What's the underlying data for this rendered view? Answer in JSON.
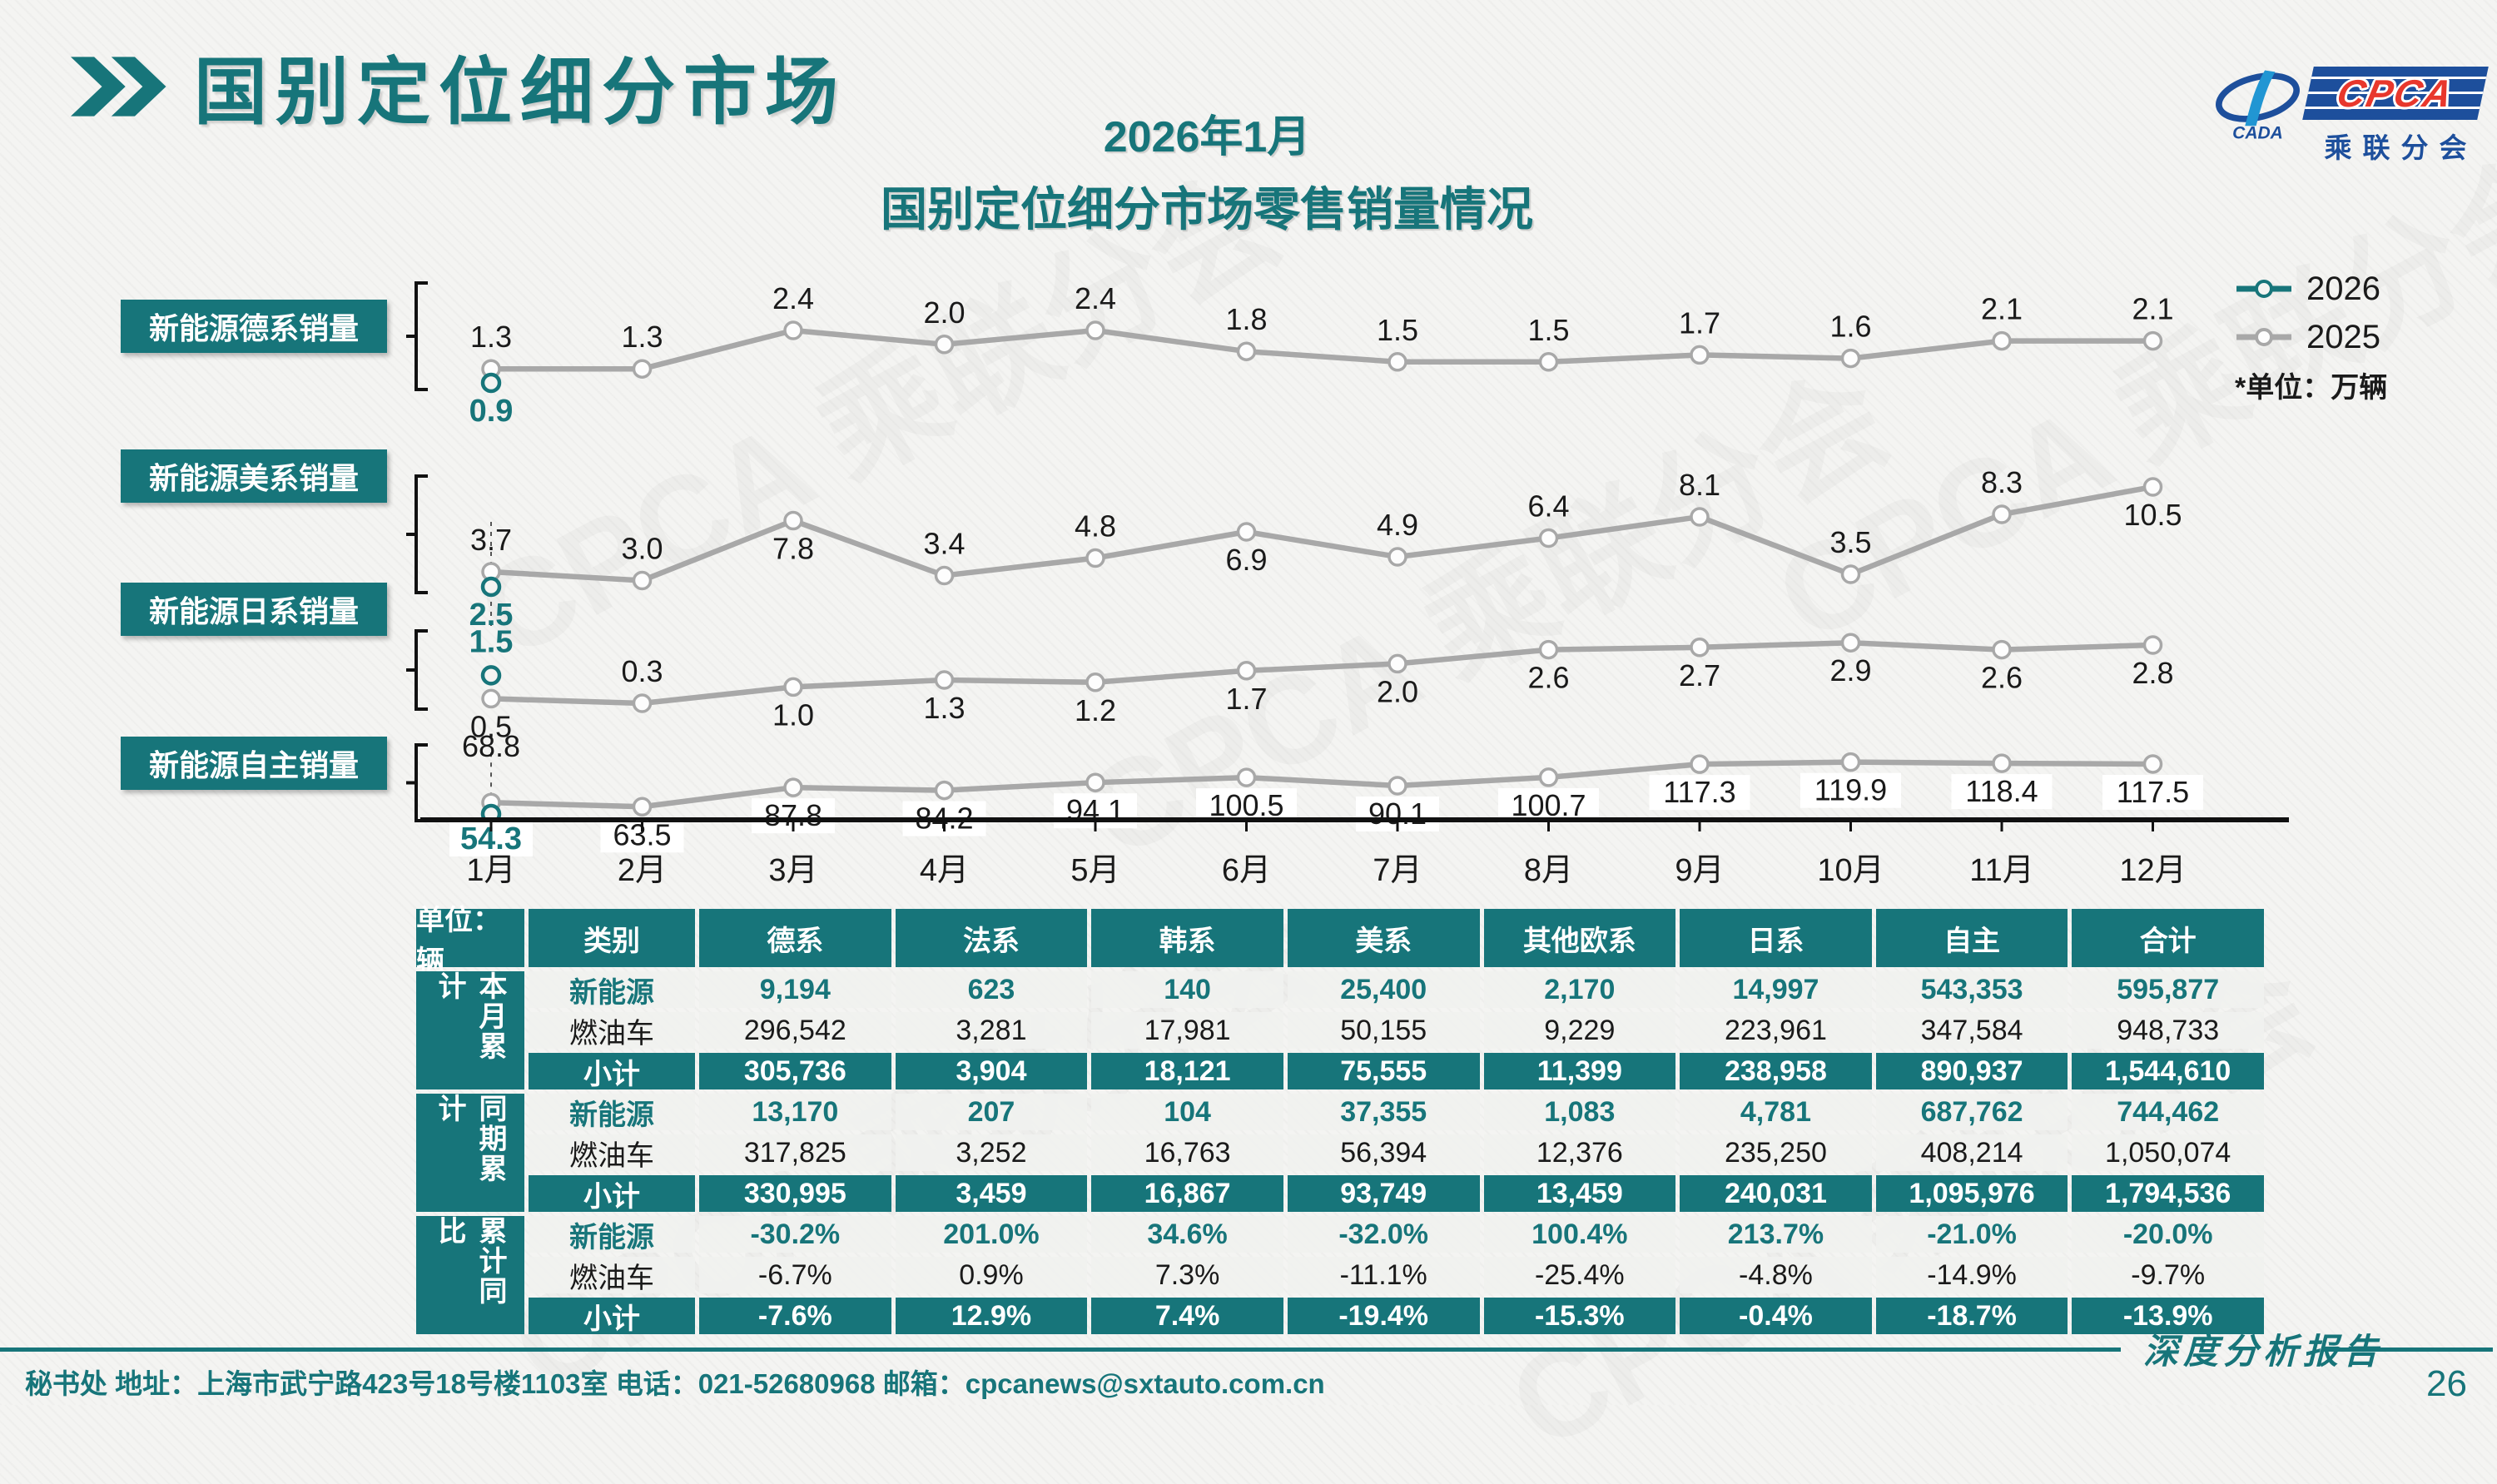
{
  "header": {
    "title": "国别定位细分市场",
    "subtitle_line1": "2026年1月",
    "subtitle_line2": "国别定位细分市场零售销量情况",
    "logo": {
      "cada_text": "CADA",
      "cpca_text": "CPCA",
      "org_text": "乘联分会"
    }
  },
  "legend": {
    "series_2026": "2026",
    "series_2025": "2025",
    "unit_note": "*单位：万辆"
  },
  "chart_data": {
    "type": "line",
    "x": [
      "1月",
      "2月",
      "3月",
      "4月",
      "5月",
      "6月",
      "7月",
      "8月",
      "9月",
      "10月",
      "11月",
      "12月"
    ],
    "unit": "万辆",
    "legend_position": "right",
    "series_rows": [
      {
        "name": "新能源德系销量",
        "y2025": [
          1.3,
          1.3,
          2.4,
          2.0,
          2.4,
          1.8,
          1.5,
          1.5,
          1.7,
          1.6,
          2.1,
          2.1
        ],
        "y2026": [
          0.9
        ],
        "labels2025_below": [
          false,
          false,
          false,
          false,
          false,
          false,
          false,
          false,
          false,
          false,
          false,
          false
        ],
        "label2026_below": true
      },
      {
        "name": "新能源美系销量",
        "y2025": [
          3.7,
          3.0,
          7.8,
          3.4,
          4.8,
          6.9,
          4.9,
          6.4,
          8.1,
          3.5,
          8.3,
          10.5
        ],
        "y2026": [
          2.5
        ],
        "labels2025_below": [
          false,
          false,
          true,
          false,
          false,
          true,
          false,
          false,
          false,
          false,
          false,
          true
        ],
        "label2026_below": true
      },
      {
        "name": "新能源日系销量",
        "y2025": [
          0.5,
          0.3,
          1.0,
          1.3,
          1.2,
          1.7,
          2.0,
          2.6,
          2.7,
          2.9,
          2.6,
          2.8
        ],
        "y2026": [
          1.5
        ],
        "labels2025_below": [
          true,
          false,
          true,
          true,
          true,
          true,
          true,
          true,
          true,
          true,
          true,
          true
        ],
        "label2026_below": false
      },
      {
        "name": "新能源自主销量",
        "y2025": [
          68.8,
          63.5,
          87.8,
          84.2,
          94.1,
          100.5,
          90.1,
          100.7,
          117.3,
          119.9,
          118.4,
          117.5
        ],
        "y2026": [
          54.3
        ],
        "labels2025_below": [
          false,
          true,
          true,
          true,
          true,
          true,
          true,
          true,
          true,
          true,
          true,
          true
        ],
        "label2026_below": true
      }
    ]
  },
  "table": {
    "unit_label": "单位：辆",
    "category_header": "类别",
    "columns": [
      "德系",
      "法系",
      "韩系",
      "美系",
      "其他欧系",
      "日系",
      "自主",
      "合计"
    ],
    "groups": [
      {
        "name": "本月累计",
        "rows": [
          {
            "category": "新能源",
            "values": [
              "9,194",
              "623",
              "140",
              "25,400",
              "2,170",
              "14,997",
              "543,353",
              "595,877"
            ]
          },
          {
            "category": "燃油车",
            "values": [
              "296,542",
              "3,281",
              "17,981",
              "50,155",
              "9,229",
              "223,961",
              "347,584",
              "948,733"
            ]
          },
          {
            "category": "小计",
            "values": [
              "305,736",
              "3,904",
              "18,121",
              "75,555",
              "11,399",
              "238,958",
              "890,937",
              "1,544,610"
            ]
          }
        ]
      },
      {
        "name": "同期累计",
        "rows": [
          {
            "category": "新能源",
            "values": [
              "13,170",
              "207",
              "104",
              "37,355",
              "1,083",
              "4,781",
              "687,762",
              "744,462"
            ]
          },
          {
            "category": "燃油车",
            "values": [
              "317,825",
              "3,252",
              "16,763",
              "56,394",
              "12,376",
              "235,250",
              "408,214",
              "1,050,074"
            ]
          },
          {
            "category": "小计",
            "values": [
              "330,995",
              "3,459",
              "16,867",
              "93,749",
              "13,459",
              "240,031",
              "1,095,976",
              "1,794,536"
            ]
          }
        ]
      },
      {
        "name": "累计同比",
        "rows": [
          {
            "category": "新能源",
            "values": [
              "-30.2%",
              "201.0%",
              "34.6%",
              "-32.0%",
              "100.4%",
              "213.7%",
              "-21.0%",
              "-20.0%"
            ]
          },
          {
            "category": "燃油车",
            "values": [
              "-6.7%",
              "0.9%",
              "7.3%",
              "-11.1%",
              "-25.4%",
              "-4.8%",
              "-14.9%",
              "-9.7%"
            ]
          },
          {
            "category": "小计",
            "values": [
              "-7.6%",
              "12.9%",
              "7.4%",
              "-19.4%",
              "-15.3%",
              "-0.4%",
              "-18.7%",
              "-13.9%"
            ]
          }
        ]
      }
    ]
  },
  "footer": {
    "contact": "秘书处   地址：上海市武宁路423号18号楼1103室  电话：021-52680968   邮箱：cpcanews@sxtauto.com.cn",
    "report_label": "深度分析报告",
    "page_number": "26"
  },
  "watermark_text": "CPCA 乘联分会",
  "colors": {
    "teal": "#17757a",
    "gray_line": "#a8a8a8",
    "logo_blue": "#1d4f9c",
    "logo_red": "#e8372c",
    "text_dark": "#1a1a1a"
  }
}
